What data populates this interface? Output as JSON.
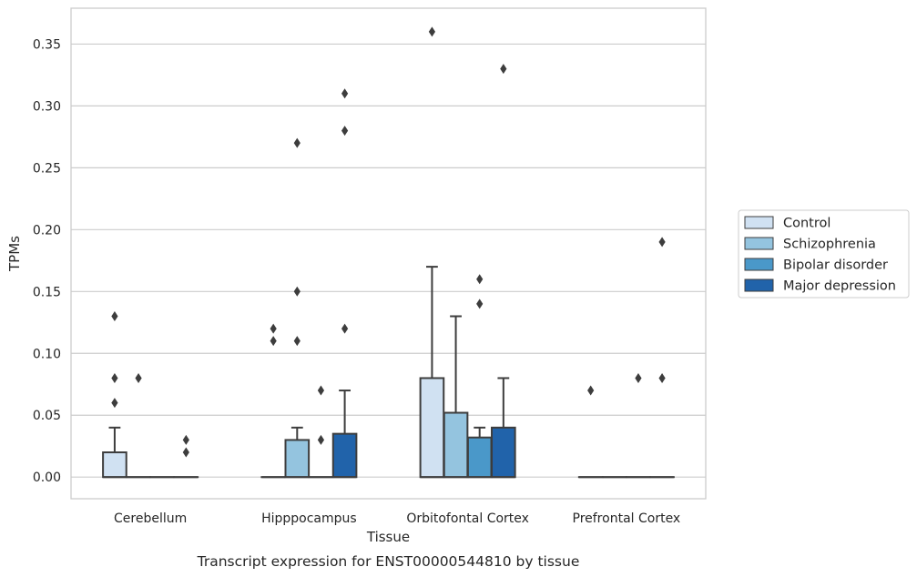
{
  "chart_data": {
    "type": "box",
    "title": "",
    "caption": "Transcript expression for ENST00000544810 by tissue",
    "xlabel": "Tissue",
    "ylabel": "TPMs",
    "ylim": [
      -0.0175,
      0.379
    ],
    "yticks": [
      "0.00",
      "0.05",
      "0.10",
      "0.15",
      "0.20",
      "0.25",
      "0.30",
      "0.35"
    ],
    "grid": "horizontal",
    "legend_position": "right",
    "categories": [
      "Cerebellum",
      "Hipppocampus",
      "Orbitofontal Cortex",
      "Prefrontal Cortex"
    ],
    "series": [
      {
        "name": "Control",
        "color": "#d0e1f2",
        "boxes": [
          {
            "q1": 0.0,
            "median": 0.0,
            "q3": 0.02,
            "whisker_low": 0.0,
            "whisker_high": 0.04,
            "outliers": [
              0.13,
              0.08,
              0.06
            ]
          },
          {
            "q1": 0.0,
            "median": 0.0,
            "q3": 0.0,
            "whisker_low": 0.0,
            "whisker_high": 0.0,
            "outliers": [
              0.12,
              0.11
            ]
          },
          {
            "q1": 0.0,
            "median": 0.0,
            "q3": 0.08,
            "whisker_low": 0.0,
            "whisker_high": 0.17,
            "outliers": [
              0.36
            ]
          },
          {
            "q1": 0.0,
            "median": 0.0,
            "q3": 0.0,
            "whisker_low": 0.0,
            "whisker_high": 0.0,
            "outliers": [
              0.07
            ]
          }
        ]
      },
      {
        "name": "Schizophrenia",
        "color": "#94c4df",
        "boxes": [
          {
            "q1": 0.0,
            "median": 0.0,
            "q3": 0.0,
            "whisker_low": 0.0,
            "whisker_high": 0.0,
            "outliers": [
              0.08
            ]
          },
          {
            "q1": 0.0,
            "median": 0.0,
            "q3": 0.03,
            "whisker_low": 0.0,
            "whisker_high": 0.04,
            "outliers": [
              0.27,
              0.15,
              0.11
            ]
          },
          {
            "q1": 0.0,
            "median": 0.0,
            "q3": 0.052,
            "whisker_low": 0.0,
            "whisker_high": 0.13,
            "outliers": []
          },
          {
            "q1": 0.0,
            "median": 0.0,
            "q3": 0.0,
            "whisker_low": 0.0,
            "whisker_high": 0.0,
            "outliers": []
          }
        ]
      },
      {
        "name": "Bipolar disorder",
        "color": "#4a98c9",
        "boxes": [
          {
            "q1": 0.0,
            "median": 0.0,
            "q3": 0.0,
            "whisker_low": 0.0,
            "whisker_high": 0.0,
            "outliers": []
          },
          {
            "q1": 0.0,
            "median": 0.0,
            "q3": 0.0,
            "whisker_low": 0.0,
            "whisker_high": 0.0,
            "outliers": [
              0.07,
              0.03
            ]
          },
          {
            "q1": 0.0,
            "median": 0.0,
            "q3": 0.032,
            "whisker_low": 0.0,
            "whisker_high": 0.04,
            "outliers": [
              0.16,
              0.14
            ]
          },
          {
            "q1": 0.0,
            "median": 0.0,
            "q3": 0.0,
            "whisker_low": 0.0,
            "whisker_high": 0.0,
            "outliers": [
              0.08
            ]
          }
        ]
      },
      {
        "name": "Major depression",
        "color": "#2163aa",
        "boxes": [
          {
            "q1": 0.0,
            "median": 0.0,
            "q3": 0.0,
            "whisker_low": 0.0,
            "whisker_high": 0.0,
            "outliers": [
              0.03,
              0.02
            ]
          },
          {
            "q1": 0.0,
            "median": 0.0,
            "q3": 0.035,
            "whisker_low": 0.0,
            "whisker_high": 0.07,
            "outliers": [
              0.31,
              0.28,
              0.12
            ]
          },
          {
            "q1": 0.0,
            "median": 0.0,
            "q3": 0.04,
            "whisker_low": 0.0,
            "whisker_high": 0.08,
            "outliers": [
              0.33
            ]
          },
          {
            "q1": 0.0,
            "median": 0.0,
            "q3": 0.0,
            "whisker_low": 0.0,
            "whisker_high": 0.0,
            "outliers": [
              0.19,
              0.08
            ]
          }
        ]
      }
    ]
  }
}
